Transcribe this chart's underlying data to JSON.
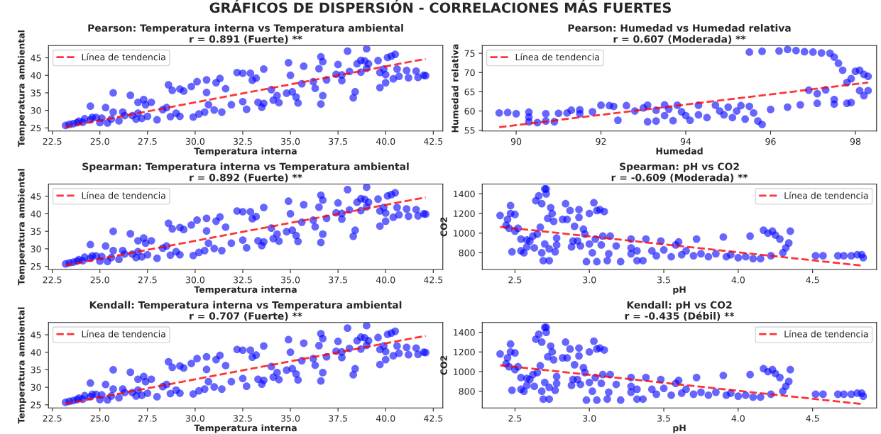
{
  "chart_data": [
    {
      "type": "scatter",
      "title": "Pearson: Temperatura interna vs Temperatura ambiental\nr = 0.891 (Fuerte) **",
      "xlabel": "Temperatura interna",
      "ylabel": "Temperatura ambiental",
      "annotations": [
        "GRÁFICOS DE DISPERSIÓN - CORRELACIONES MÁS FUERTES"
      ],
      "xlim": [
        22.3,
        43.0
      ],
      "ylim": [
        24.1,
        48.5
      ],
      "xticks": [
        22.5,
        {
          "value": 25,
          "label": "25.0"
        },
        27.5,
        {
          "value": 30,
          "label": "30.0"
        },
        32.5,
        {
          "value": 35,
          "label": "35.0"
        },
        37.5,
        {
          "value": 40,
          "label": "40.0"
        },
        42.5
      ],
      "yticks": [
        25,
        30,
        35,
        40,
        45
      ],
      "legend": "top left",
      "series": [
        {
          "type": "scatter",
          "color": "#0000ff",
          "marker": "circle",
          "x": [
            23.2,
            23.4,
            23.6,
            23.8,
            23.9,
            24.1,
            24.2,
            24.5,
            24.6,
            24.5,
            24.8,
            25.0,
            25.1,
            25.3,
            25.4,
            25.6,
            25.7,
            25.7,
            26.0,
            26.2,
            26.3,
            26.6,
            26.7,
            26.9,
            27.0,
            27.0,
            27.2,
            27.3,
            27.4,
            27.5,
            27.7,
            28.0,
            28.3,
            28.5,
            28.6,
            28.7,
            28.8,
            29.0,
            29.2,
            29.2,
            29.4,
            29.8,
            29.9,
            30.1,
            30.2,
            30.5,
            30.6,
            30.6,
            30.7,
            31.0,
            31.1,
            31.3,
            31.4,
            31.6,
            31.9,
            32.2,
            32.5,
            32.5,
            32.7,
            32.9,
            33.0,
            33.2,
            33.3,
            33.6,
            33.5,
            33.6,
            34.0,
            34.1,
            34.4,
            34.3,
            34.8,
            34.9,
            35.0,
            35.1,
            35.3,
            35.4,
            35.6,
            35.7,
            36.2,
            36.3,
            36.5,
            36.6,
            36.7,
            36.6,
            36.7,
            36.9,
            37.4,
            37.5,
            37.7,
            37.7,
            38.0,
            38.1,
            38.3,
            38.4,
            38.5,
            38.7,
            38.7,
            38.9,
            39.0,
            39.1,
            39.0,
            39.6,
            39.7,
            39.7,
            39.9,
            40.0,
            40.1,
            40.0,
            40.3,
            40.4,
            40.5,
            40.6,
            40.7,
            41.1,
            41.2,
            41.6,
            41.7,
            42.0,
            42.1
          ],
          "values": [
            25.7,
            26.0,
            26.2,
            26.5,
            26.9,
            26.6,
            27.6,
            27.3,
            28.0,
            31.2,
            28.0,
            26.5,
            27.8,
            30.8,
            26.4,
            27.5,
            29.5,
            35.0,
            27.0,
            29.5,
            28.5,
            34.3,
            28.5,
            27.5,
            32.3,
            29.2,
            27.7,
            33.1,
            31.6,
            28.3,
            32.3,
            27.3,
            30.2,
            30.8,
            37.3,
            28.2,
            35.7,
            29.2,
            28.3,
            36.1,
            35.5,
            36.8,
            28.1,
            38.2,
            29.0,
            29.5,
            38.7,
            35.1,
            31.6,
            30.1,
            37.9,
            39.1,
            29.5,
            36.2,
            31.6,
            40.8,
            40.6,
            32.5,
            30.3,
            40.6,
            38.6,
            39.2,
            32.3,
            41.8,
            30.9,
            32.0,
            35.9,
            32.9,
            32.2,
            34.2,
            34.9,
            43.6,
            40.0,
            35.3,
            33.8,
            32.1,
            37.6,
            42.6,
            38.2,
            36.3,
            41.9,
            45.3,
            43.9,
            31.8,
            34.2,
            38.7,
            40.3,
            43.1,
            38.5,
            40.1,
            46.9,
            41.1,
            33.6,
            35.3,
            43.3,
            44.3,
            40.9,
            44.1,
            47.6,
            43.3,
            42.0,
            44.2,
            40.8,
            36.5,
            41.8,
            40.2,
            45.1,
            37.9,
            45.5,
            39.0,
            46.0,
            41.8,
            39.7,
            41.4,
            39.3,
            41.2,
            39.4,
            40.0,
            39.9
          ]
        },
        {
          "type": "line",
          "name": "Línea de tendencia",
          "color": "#ff0000",
          "line_style": "dashed",
          "x": [
            23.2,
            42.1
          ],
          "values": [
            25.3,
            44.7
          ]
        }
      ]
    },
    {
      "type": "scatter",
      "title": "Pearson: Humedad vs Humedad relativa\nr = 0.607 (Moderada) **",
      "xlabel": "Humedad",
      "ylabel": "Humedad relativa",
      "xlim": [
        89.2,
        98.5
      ],
      "ylim": [
        54.8,
        77.0
      ],
      "xticks": [
        90,
        92,
        94,
        96,
        98
      ],
      "yticks": [
        55,
        60,
        65,
        70,
        75
      ],
      "legend": "top left",
      "series": [
        {
          "type": "scatter",
          "color": "#0000ff",
          "marker": "circle",
          "x": [
            89.6,
            89.8,
            90.0,
            90.3,
            90.3,
            90.3,
            90.5,
            90.7,
            90.7,
            90.9,
            91.0,
            91.2,
            91.3,
            91.5,
            91.5,
            91.8,
            92.0,
            92.2,
            92.3,
            92.4,
            92.6,
            92.8,
            93.0,
            93.1,
            93.1,
            93.3,
            93.3,
            93.5,
            93.5,
            93.6,
            93.7,
            93.8,
            93.9,
            94.0,
            94.1,
            94.3,
            94.3,
            94.5,
            94.7,
            94.8,
            94.9,
            95.0,
            95.1,
            95.2,
            95.3,
            95.4,
            95.5,
            95.5,
            95.6,
            95.7,
            95.8,
            95.8,
            96.0,
            96.2,
            96.4,
            96.4,
            96.6,
            96.7,
            96.8,
            97.0,
            96.9,
            97.1,
            97.1,
            97.2,
            97.3,
            97.4,
            97.5,
            97.5,
            97.5,
            97.6,
            97.7,
            97.8,
            97.8,
            97.9,
            97.9,
            98.0,
            98.1,
            98.1,
            98.2,
            98.2,
            98.3,
            98.3
          ],
          "values": [
            59.5,
            59.6,
            59.3,
            59.7,
            58.4,
            57.2,
            57.0,
            59.3,
            57.4,
            57.2,
            59.4,
            59.5,
            60.2,
            60.3,
            59.3,
            59.8,
            61.5,
            61.4,
            61.2,
            57.6,
            61.4,
            60.0,
            60.8,
            57.2,
            61.5,
            60.2,
            57.4,
            61.6,
            58.8,
            60.5,
            57.5,
            61.5,
            59.8,
            58.8,
            57.6,
            61.5,
            59.0,
            58.3,
            61.5,
            60.0,
            59.0,
            61.0,
            58.3,
            60.0,
            61.4,
            57.9,
            61.2,
            75.3,
            59.5,
            57.4,
            75.5,
            56.5,
            60.4,
            75.6,
            76.0,
            61.0,
            75.7,
            61.6,
            75.4,
            75.3,
            65.4,
            62.0,
            64.5,
            75.1,
            65.5,
            75.0,
            74.0,
            63.0,
            61.8,
            72.4,
            70.6,
            67.4,
            62.0,
            62.2,
            68.4,
            70.3,
            70.6,
            65.3,
            69.5,
            64.0,
            69.0,
            65.3
          ]
        },
        {
          "type": "line",
          "name": "Línea de tendencia",
          "color": "#ff0000",
          "line_style": "dashed",
          "x": [
            89.6,
            98.3
          ],
          "values": [
            55.8,
            67.4
          ]
        }
      ]
    },
    {
      "type": "scatter",
      "title": "Spearman: Temperatura interna vs Temperatura ambiental\nr = 0.892 (Fuerte) **",
      "xlabel": "Temperatura interna",
      "ylabel": "Temperatura ambiental",
      "xlim": [
        22.3,
        43.0
      ],
      "ylim": [
        24.1,
        48.5
      ],
      "xticks": [
        22.5,
        {
          "value": 25,
          "label": "25.0"
        },
        27.5,
        {
          "value": 30,
          "label": "30.0"
        },
        32.5,
        {
          "value": 35,
          "label": "35.0"
        },
        37.5,
        {
          "value": 40,
          "label": "40.0"
        },
        42.5
      ],
      "yticks": [
        25,
        30,
        35,
        40,
        45
      ],
      "legend": "top left",
      "series": [
        {
          "type": "scatter",
          "color": "#0000ff",
          "marker": "circle",
          "x": [
            23.2,
            23.4,
            23.6,
            23.8,
            23.9,
            24.1,
            24.2,
            24.5,
            24.6,
            24.5,
            24.8,
            25.0,
            25.1,
            25.3,
            25.4,
            25.6,
            25.7,
            25.7,
            26.0,
            26.2,
            26.3,
            26.6,
            26.7,
            26.9,
            27.0,
            27.0,
            27.2,
            27.3,
            27.4,
            27.5,
            27.7,
            28.0,
            28.3,
            28.5,
            28.6,
            28.7,
            28.8,
            29.0,
            29.2,
            29.2,
            29.4,
            29.8,
            29.9,
            30.1,
            30.2,
            30.5,
            30.6,
            30.6,
            30.7,
            31.0,
            31.1,
            31.3,
            31.4,
            31.6,
            31.9,
            32.2,
            32.5,
            32.5,
            32.7,
            32.9,
            33.0,
            33.2,
            33.3,
            33.6,
            33.5,
            33.6,
            34.0,
            34.1,
            34.4,
            34.3,
            34.8,
            34.9,
            35.0,
            35.1,
            35.3,
            35.4,
            35.6,
            35.7,
            36.2,
            36.3,
            36.5,
            36.6,
            36.7,
            36.6,
            36.7,
            36.9,
            37.4,
            37.5,
            37.7,
            37.7,
            38.0,
            38.1,
            38.3,
            38.4,
            38.5,
            38.7,
            38.7,
            38.9,
            39.0,
            39.1,
            39.0,
            39.6,
            39.7,
            39.7,
            39.9,
            40.0,
            40.1,
            40.0,
            40.3,
            40.4,
            40.5,
            40.6,
            40.7,
            41.1,
            41.2,
            41.6,
            41.7,
            42.0,
            42.1
          ],
          "values": [
            25.7,
            26.0,
            26.2,
            26.5,
            26.9,
            26.6,
            27.6,
            27.3,
            28.0,
            31.2,
            28.0,
            26.5,
            27.8,
            30.8,
            26.4,
            27.5,
            29.5,
            35.0,
            27.0,
            29.5,
            28.5,
            34.3,
            28.5,
            27.5,
            32.3,
            29.2,
            27.7,
            33.1,
            31.6,
            28.3,
            32.3,
            27.3,
            30.2,
            30.8,
            37.3,
            28.2,
            35.7,
            29.2,
            28.3,
            36.1,
            35.5,
            36.8,
            28.1,
            38.2,
            29.0,
            29.5,
            38.7,
            35.1,
            31.6,
            30.1,
            37.9,
            39.1,
            29.5,
            36.2,
            31.6,
            40.8,
            40.6,
            32.5,
            30.3,
            40.6,
            38.6,
            39.2,
            32.3,
            41.8,
            30.9,
            32.0,
            35.9,
            32.9,
            32.2,
            34.2,
            34.9,
            43.6,
            40.0,
            35.3,
            33.8,
            32.1,
            37.6,
            42.6,
            38.2,
            36.3,
            41.9,
            45.3,
            43.9,
            31.8,
            34.2,
            38.7,
            40.3,
            43.1,
            38.5,
            40.1,
            46.9,
            41.1,
            33.6,
            35.3,
            43.3,
            44.3,
            40.9,
            44.1,
            47.6,
            43.3,
            42.0,
            44.2,
            40.8,
            36.5,
            41.8,
            40.2,
            45.1,
            37.9,
            45.5,
            39.0,
            46.0,
            41.8,
            39.7,
            41.4,
            39.3,
            41.2,
            39.4,
            40.0,
            39.9
          ]
        },
        {
          "type": "line",
          "name": "Línea de tendencia",
          "color": "#ff0000",
          "line_style": "dashed",
          "x": [
            23.2,
            42.1
          ],
          "values": [
            25.3,
            44.7
          ]
        }
      ]
    },
    {
      "type": "scatter",
      "title": "Spearman: pH vs CO2\nr = -0.609 (Moderada) **",
      "xlabel": "pH",
      "ylabel": "CO2",
      "xlim": [
        2.28,
        4.93
      ],
      "ylim": [
        630,
        1500
      ],
      "xticks": [
        2.5,
        {
          "value": 3,
          "label": "3.0"
        },
        3.5,
        {
          "value": 4,
          "label": "4.0"
        },
        4.5
      ],
      "yticks": [
        800,
        1000,
        1200,
        1400
      ],
      "legend": "top right",
      "series": [
        {
          "type": "scatter",
          "color": "#0000ff",
          "marker": "circle",
          "x": [
            2.4,
            2.44,
            2.45,
            2.46,
            2.47,
            2.47,
            2.48,
            2.5,
            2.5,
            2.52,
            2.54,
            2.54,
            2.56,
            2.58,
            2.58,
            2.6,
            2.62,
            2.63,
            2.64,
            2.65,
            2.66,
            2.67,
            2.68,
            2.68,
            2.69,
            2.7,
            2.7,
            2.71,
            2.71,
            2.72,
            2.73,
            2.73,
            2.74,
            2.75,
            2.76,
            2.77,
            2.78,
            2.78,
            2.82,
            2.84,
            2.85,
            2.87,
            2.88,
            2.89,
            2.9,
            2.92,
            2.93,
            2.93,
            2.94,
            2.96,
            2.97,
            2.98,
            3.0,
            3.0,
            3.02,
            3.03,
            3.04,
            3.05,
            3.05,
            3.07,
            3.08,
            3.09,
            3.1,
            3.12,
            3.13,
            3.14,
            3.18,
            3.21,
            3.28,
            3.28,
            3.28,
            3.32,
            3.32,
            3.36,
            3.38,
            3.42,
            3.45,
            3.48,
            3.5,
            3.55,
            3.58,
            3.6,
            3.62,
            3.65,
            3.7,
            3.72,
            3.75,
            3.8,
            3.85,
            3.9,
            3.92,
            3.95,
            4.0,
            4.05,
            4.08,
            4.1,
            4.15,
            4.17,
            4.2,
            4.22,
            4.23,
            4.25,
            4.28,
            4.3,
            4.32,
            4.34,
            4.35,
            4.52,
            4.57,
            4.67,
            4.71,
            4.76,
            4.8,
            4.83,
            4.84
          ],
          "values": [
            1180,
            1080,
            1140,
            1050,
            1280,
            1200,
            810,
            1190,
            1020,
            1050,
            940,
            820,
            800,
            930,
            860,
            920,
            970,
            850,
            1330,
            990,
            1380,
            1060,
            800,
            1300,
            720,
            890,
            1450,
            1400,
            1450,
            1150,
            840,
            720,
            1260,
            1200,
            1120,
            810,
            950,
            880,
            1140,
            1300,
            1140,
            1230,
            860,
            920,
            1070,
            920,
            1240,
            1160,
            870,
            1040,
            990,
            710,
            1200,
            890,
            800,
            1310,
            940,
            1230,
            710,
            1240,
            880,
            970,
            1220,
            720,
            790,
            970,
            870,
            710,
            940,
            850,
            790,
            820,
            720,
            720,
            940,
            820,
            770,
            920,
            830,
            760,
            880,
            910,
            780,
            820,
            770,
            940,
            790,
            760,
            790,
            960,
            760,
            780,
            750,
            760,
            970,
            740,
            740,
            1030,
            1000,
            770,
            1020,
            980,
            940,
            800,
            850,
            900,
            1020,
            770,
            770,
            770,
            770,
            770,
            780,
            780,
            750
          ]
        },
        {
          "type": "line",
          "name": "Línea de tendencia",
          "color": "#ff0000",
          "line_style": "dashed",
          "x": [
            2.4,
            4.83
          ],
          "values": [
            1065,
            670
          ]
        }
      ]
    },
    {
      "type": "scatter",
      "title": "Kendall: Temperatura interna vs Temperatura ambiental\nr = 0.707 (Fuerte) **",
      "xlabel": "Temperatura interna",
      "ylabel": "Temperatura ambiental",
      "xlim": [
        22.3,
        43.0
      ],
      "ylim": [
        24.1,
        48.5
      ],
      "xticks": [
        22.5,
        {
          "value": 25,
          "label": "25.0"
        },
        27.5,
        {
          "value": 30,
          "label": "30.0"
        },
        32.5,
        {
          "value": 35,
          "label": "35.0"
        },
        37.5,
        {
          "value": 40,
          "label": "40.0"
        },
        42.5
      ],
      "yticks": [
        25,
        30,
        35,
        40,
        45
      ],
      "legend": "top left",
      "series": [
        {
          "type": "scatter",
          "color": "#0000ff",
          "marker": "circle",
          "x": [
            23.2,
            23.4,
            23.6,
            23.8,
            23.9,
            24.1,
            24.2,
            24.5,
            24.6,
            24.5,
            24.8,
            25.0,
            25.1,
            25.3,
            25.4,
            25.6,
            25.7,
            25.7,
            26.0,
            26.2,
            26.3,
            26.6,
            26.7,
            26.9,
            27.0,
            27.0,
            27.2,
            27.3,
            27.4,
            27.5,
            27.7,
            28.0,
            28.3,
            28.5,
            28.6,
            28.7,
            28.8,
            29.0,
            29.2,
            29.2,
            29.4,
            29.8,
            29.9,
            30.1,
            30.2,
            30.5,
            30.6,
            30.6,
            30.7,
            31.0,
            31.1,
            31.3,
            31.4,
            31.6,
            31.9,
            32.2,
            32.5,
            32.5,
            32.7,
            32.9,
            33.0,
            33.2,
            33.3,
            33.6,
            33.5,
            33.6,
            34.0,
            34.1,
            34.4,
            34.3,
            34.8,
            34.9,
            35.0,
            35.1,
            35.3,
            35.4,
            35.6,
            35.7,
            36.2,
            36.3,
            36.5,
            36.6,
            36.7,
            36.6,
            36.7,
            36.9,
            37.4,
            37.5,
            37.7,
            37.7,
            38.0,
            38.1,
            38.3,
            38.4,
            38.5,
            38.7,
            38.7,
            38.9,
            39.0,
            39.1,
            39.0,
            39.6,
            39.7,
            39.7,
            39.9,
            40.0,
            40.1,
            40.0,
            40.3,
            40.4,
            40.5,
            40.6,
            40.7,
            41.1,
            41.2,
            41.6,
            41.7,
            42.0,
            42.1
          ],
          "values": [
            25.7,
            26.0,
            26.2,
            26.5,
            26.9,
            26.6,
            27.6,
            27.3,
            28.0,
            31.2,
            28.0,
            26.5,
            27.8,
            30.8,
            26.4,
            27.5,
            29.5,
            35.0,
            27.0,
            29.5,
            28.5,
            34.3,
            28.5,
            27.5,
            32.3,
            29.2,
            27.7,
            33.1,
            31.6,
            28.3,
            32.3,
            27.3,
            30.2,
            30.8,
            37.3,
            28.2,
            35.7,
            29.2,
            28.3,
            36.1,
            35.5,
            36.8,
            28.1,
            38.2,
            29.0,
            29.5,
            38.7,
            35.1,
            31.6,
            30.1,
            37.9,
            39.1,
            29.5,
            36.2,
            31.6,
            40.8,
            40.6,
            32.5,
            30.3,
            40.6,
            38.6,
            39.2,
            32.3,
            41.8,
            30.9,
            32.0,
            35.9,
            32.9,
            32.2,
            34.2,
            34.9,
            43.6,
            40.0,
            35.3,
            33.8,
            32.1,
            37.6,
            42.6,
            38.2,
            36.3,
            41.9,
            45.3,
            43.9,
            31.8,
            34.2,
            38.7,
            40.3,
            43.1,
            38.5,
            40.1,
            46.9,
            41.1,
            33.6,
            35.3,
            43.3,
            44.3,
            40.9,
            44.1,
            47.6,
            43.3,
            42.0,
            44.2,
            40.8,
            36.5,
            41.8,
            40.2,
            45.1,
            37.9,
            45.5,
            39.0,
            46.0,
            41.8,
            39.7,
            41.4,
            39.3,
            41.2,
            39.4,
            40.0,
            39.9
          ]
        },
        {
          "type": "line",
          "name": "Línea de tendencia",
          "color": "#ff0000",
          "line_style": "dashed",
          "x": [
            23.2,
            42.1
          ],
          "values": [
            25.3,
            44.7
          ]
        }
      ]
    },
    {
      "type": "scatter",
      "title": "Kendall: pH vs CO2\nr = -0.435 (Débil) **",
      "xlabel": "pH",
      "ylabel": "CO2",
      "xlim": [
        2.28,
        4.93
      ],
      "ylim": [
        630,
        1500
      ],
      "xticks": [
        2.5,
        {
          "value": 3,
          "label": "3.0"
        },
        3.5,
        {
          "value": 4,
          "label": "4.0"
        },
        4.5
      ],
      "yticks": [
        800,
        1000,
        1200,
        1400
      ],
      "legend": "top right",
      "series": [
        {
          "type": "scatter",
          "color": "#0000ff",
          "marker": "circle",
          "x": [
            2.4,
            2.44,
            2.45,
            2.46,
            2.47,
            2.47,
            2.48,
            2.5,
            2.5,
            2.52,
            2.54,
            2.54,
            2.56,
            2.58,
            2.58,
            2.6,
            2.62,
            2.63,
            2.64,
            2.65,
            2.66,
            2.67,
            2.68,
            2.68,
            2.69,
            2.7,
            2.7,
            2.71,
            2.71,
            2.72,
            2.73,
            2.73,
            2.74,
            2.75,
            2.76,
            2.77,
            2.78,
            2.78,
            2.82,
            2.84,
            2.85,
            2.87,
            2.88,
            2.89,
            2.9,
            2.92,
            2.93,
            2.93,
            2.94,
            2.96,
            2.97,
            2.98,
            3.0,
            3.0,
            3.02,
            3.03,
            3.04,
            3.05,
            3.05,
            3.07,
            3.08,
            3.09,
            3.1,
            3.12,
            3.13,
            3.14,
            3.18,
            3.21,
            3.28,
            3.28,
            3.28,
            3.32,
            3.32,
            3.36,
            3.38,
            3.42,
            3.45,
            3.48,
            3.5,
            3.55,
            3.58,
            3.6,
            3.62,
            3.65,
            3.7,
            3.72,
            3.75,
            3.8,
            3.85,
            3.9,
            3.92,
            3.95,
            4.0,
            4.05,
            4.08,
            4.1,
            4.15,
            4.17,
            4.2,
            4.22,
            4.23,
            4.25,
            4.28,
            4.3,
            4.32,
            4.34,
            4.35,
            4.52,
            4.57,
            4.67,
            4.71,
            4.76,
            4.8,
            4.83,
            4.84
          ],
          "values": [
            1180,
            1080,
            1140,
            1050,
            1280,
            1200,
            810,
            1190,
            1020,
            1050,
            940,
            820,
            800,
            930,
            860,
            920,
            970,
            850,
            1330,
            990,
            1380,
            1060,
            800,
            1300,
            720,
            890,
            1450,
            1400,
            1450,
            1150,
            840,
            720,
            1260,
            1200,
            1120,
            810,
            950,
            880,
            1140,
            1300,
            1140,
            1230,
            860,
            920,
            1070,
            920,
            1240,
            1160,
            870,
            1040,
            990,
            710,
            1200,
            890,
            800,
            1310,
            940,
            1230,
            710,
            1240,
            880,
            970,
            1220,
            720,
            790,
            970,
            870,
            710,
            940,
            850,
            790,
            820,
            720,
            720,
            940,
            820,
            770,
            920,
            830,
            760,
            880,
            910,
            780,
            820,
            770,
            940,
            790,
            760,
            790,
            960,
            760,
            780,
            750,
            760,
            970,
            740,
            740,
            1030,
            1000,
            770,
            1020,
            980,
            940,
            800,
            850,
            900,
            1020,
            770,
            770,
            770,
            770,
            770,
            780,
            780,
            750
          ]
        },
        {
          "type": "line",
          "name": "Línea de tendencia",
          "color": "#ff0000",
          "line_style": "dashed",
          "x": [
            2.4,
            4.83
          ],
          "values": [
            1065,
            670
          ]
        }
      ]
    }
  ]
}
